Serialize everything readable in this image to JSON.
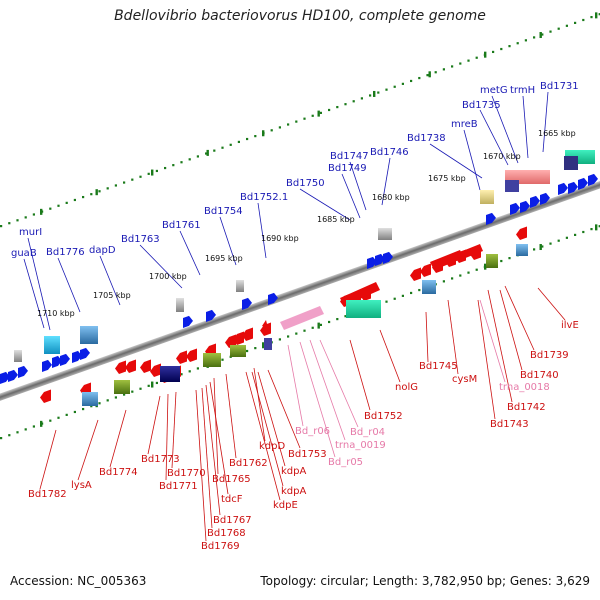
{
  "title": "Bdellovibrio bacteriovorus HD100, complete genome",
  "footer": {
    "accession": "Accession: NC_005363",
    "summary": "Topology: circular; Length: 3,782,950 bp; Genes: 3,629"
  },
  "kbp_labels": [
    "1665 kbp",
    "1670 kbp",
    "1675 kbp",
    "1680 kbp",
    "1685 kbp",
    "1690 kbp",
    "1695 kbp",
    "1700 kbp",
    "1705 kbp",
    "1710 kbp"
  ],
  "top_labels": [
    "Bd1731",
    "trmH",
    "metG",
    "Bd1735",
    "mreB",
    "Bd1738",
    "Bd1746",
    "Bd1747",
    "Bd1749",
    "Bd1750",
    "Bd1752.1",
    "Bd1754",
    "Bd1761",
    "Bd1763",
    "dapD",
    "Bd1776",
    "guaB",
    "murI"
  ],
  "bottom_red_labels": [
    "ilvE",
    "Bd1739",
    "Bd1740",
    "Bd1742",
    "Bd1743",
    "cysM",
    "Bd1745",
    "nolG",
    "Bd1752",
    "Bd1753",
    "kdpD",
    "kdpA",
    "kdpA",
    "kdpE",
    "Bd1762",
    "Bd1765",
    "tdcF",
    "Bd1767",
    "Bd1768",
    "Bd1769",
    "Bd1770",
    "Bd1771",
    "Bd1773",
    "Bd1774",
    "lysA",
    "Bd1782"
  ],
  "bottom_pink_labels": [
    "trna_0018",
    "Bd_r04",
    "trna_0019",
    "Bd_r05",
    "Bd_r06"
  ],
  "colors": {
    "forward_gene": "#0a1ee6",
    "reverse_gene": "#e60a0a",
    "rna_gene": "#f0a0c8",
    "backbone": "#8a8a8a",
    "tick": "#1a7a1a"
  }
}
